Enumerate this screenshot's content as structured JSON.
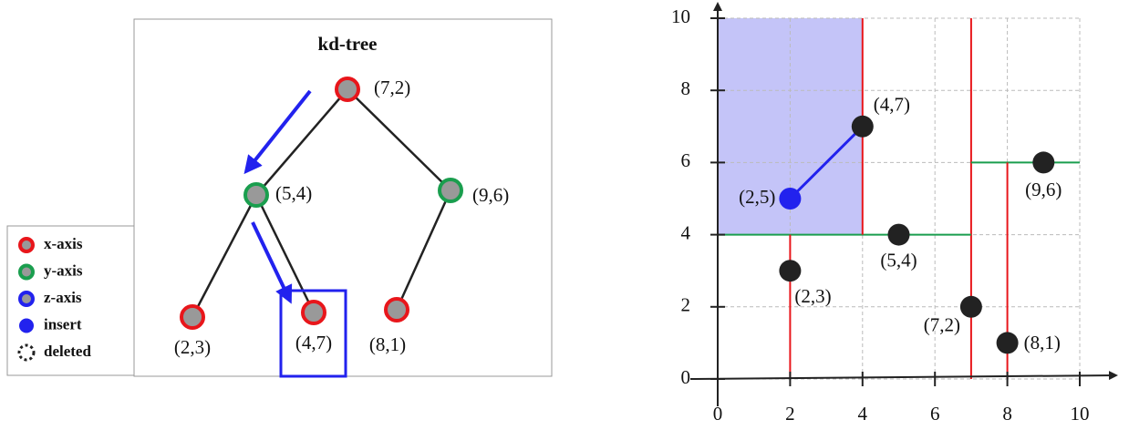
{
  "tree": {
    "title": "kd-tree"
  },
  "points": [
    {
      "label": "(7,2)",
      "x": 7,
      "y": 2
    },
    {
      "label": "(5,4)",
      "x": 5,
      "y": 4
    },
    {
      "label": "(9,6)",
      "x": 9,
      "y": 6
    },
    {
      "label": "(2,3)",
      "x": 2,
      "y": 3
    },
    {
      "label": "(4,7)",
      "x": 4,
      "y": 7
    },
    {
      "label": "(8,1)",
      "x": 8,
      "y": 1
    }
  ],
  "insert": {
    "label": "(2,5)",
    "x": 2,
    "y": 5
  },
  "legend": {
    "items": [
      "x-axis",
      "y-axis",
      "z-axis",
      "insert",
      "deleted"
    ]
  },
  "plot": {
    "xlim": [
      0,
      10
    ],
    "ylim": [
      0,
      10
    ],
    "xticks": [
      0,
      2,
      4,
      6,
      8,
      10
    ],
    "yticks": [
      0,
      2,
      4,
      6,
      8,
      10
    ],
    "grid": true
  }
}
